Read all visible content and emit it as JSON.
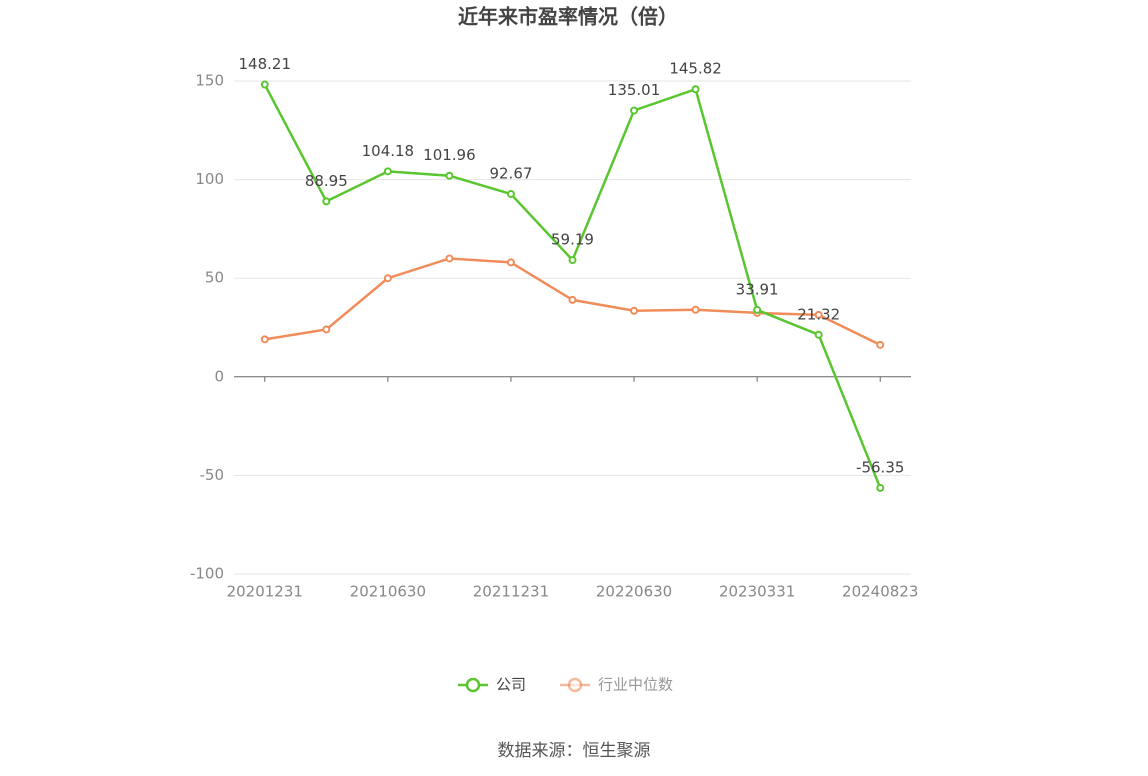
{
  "chart_data": {
    "type": "line",
    "title": "近年来市盈率情况（倍）",
    "categories": [
      "20201231",
      null,
      "20210630",
      null,
      "20211231",
      null,
      "20220630",
      null,
      "20230331",
      null,
      "20240823"
    ],
    "series": [
      {
        "name": "公司",
        "color": "#5ac62f",
        "values": [
          148.21,
          88.95,
          104.18,
          101.96,
          92.67,
          59.19,
          135.01,
          145.82,
          33.91,
          21.32,
          -56.35
        ]
      },
      {
        "name": "行业中位数",
        "color": "#f08c5a",
        "values": [
          19,
          24,
          50,
          60,
          58,
          39,
          33.5,
          34,
          32.4,
          31.4,
          16.2
        ]
      }
    ],
    "ylim": [
      -100,
      150
    ],
    "yticks": [
      -100,
      -50,
      0,
      50,
      100,
      150
    ],
    "grid": true,
    "source": "数据来源：恒生聚源"
  }
}
